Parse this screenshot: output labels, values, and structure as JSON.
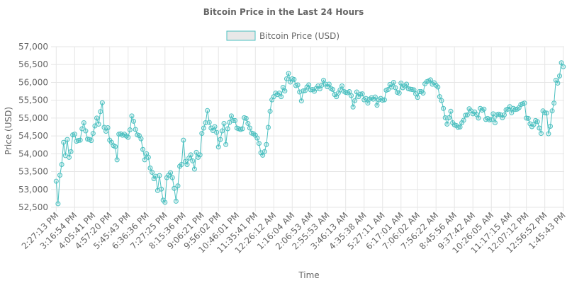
{
  "chart_data": {
    "type": "line",
    "title": "Bitcoin Price in the Last 24 Hours",
    "xlabel": "Time",
    "ylabel": "Price (USD)",
    "ylim": [
      52500,
      57000
    ],
    "yticks": [
      52500,
      53000,
      53500,
      54000,
      54500,
      55000,
      55500,
      56000,
      56500,
      57000
    ],
    "ytick_labels": [
      "52,500",
      "53,000",
      "53,500",
      "54,000",
      "54,500",
      "55,000",
      "55,500",
      "56,000",
      "56,500",
      "57,000"
    ],
    "xtick_labels": [
      "2:27:13 PM",
      "3:16:54 PM",
      "4:05:41 PM",
      "4:57:20 PM",
      "5:45:43 PM",
      "6:36:36 PM",
      "7:27:25 PM",
      "8:15:36 PM",
      "9:06:21 PM",
      "9:56:02 PM",
      "10:46:01 PM",
      "11:35:41 PM",
      "12:26:12 AM",
      "1:16:04 AM",
      "2:06:53 AM",
      "2:55:53 AM",
      "3:46:13 AM",
      "4:35:38 AM",
      "5:27:11 AM",
      "6:17:01 AM",
      "7:06:02 AM",
      "7:56:22 AM",
      "8:45:56 AM",
      "9:37:42 AM",
      "10:26:05 AM",
      "11:17:15 AM",
      "12:07:12 PM",
      "12:56:52 PM",
      "1:45:43 PM"
    ],
    "grid": true,
    "legend_position": "top-center",
    "series": [
      {
        "name": "Bitcoin Price (USD)",
        "color": "#4bc0c0",
        "values": [
          53230,
          52600,
          53400,
          53700,
          54320,
          53950,
          54400,
          53900,
          54060,
          54530,
          54550,
          54350,
          54370,
          54380,
          54700,
          54870,
          54640,
          54410,
          54400,
          54370,
          54570,
          54780,
          55000,
          54830,
          55180,
          55430,
          54740,
          54630,
          54730,
          54380,
          54320,
          54230,
          54200,
          53830,
          54550,
          54560,
          54520,
          54550,
          54500,
          54460,
          54670,
          55060,
          54910,
          54680,
          54530,
          54510,
          54420,
          54120,
          53830,
          54000,
          53900,
          53600,
          53480,
          53300,
          53370,
          52970,
          53390,
          53010,
          52700,
          52640,
          53330,
          53400,
          53470,
          53330,
          53030,
          52670,
          53100,
          53650,
          53700,
          54380,
          53780,
          53700,
          53880,
          53970,
          53800,
          53570,
          54040,
          53900,
          53970,
          54570,
          54720,
          54870,
          55210,
          54880,
          54720,
          54650,
          54760,
          54600,
          54190,
          54400,
          54640,
          54850,
          54260,
          54700,
          54880,
          55060,
          54930,
          54930,
          54720,
          54700,
          54680,
          54700,
          55010,
          54990,
          54850,
          54720,
          54580,
          54560,
          54520,
          54440,
          54290,
          54030,
          53960,
          54060,
          54260,
          54740,
          55190,
          55510,
          55600,
          55700,
          55660,
          55700,
          55600,
          55860,
          55760,
          56100,
          56250,
          56010,
          56100,
          56080,
          55910,
          55930,
          55730,
          55480,
          55760,
          55770,
          55870,
          55930,
          55790,
          55800,
          55750,
          55830,
          55900,
          55820,
          55920,
          56060,
          55950,
          55880,
          55950,
          55830,
          55800,
          55660,
          55600,
          55700,
          55790,
          55900,
          55750,
          55720,
          55710,
          55740,
          55630,
          55310,
          55490,
          55730,
          55600,
          55670,
          55680,
          55510,
          55550,
          55420,
          55530,
          55570,
          55530,
          55590,
          55360,
          55510,
          55550,
          55500,
          55510,
          55780,
          55800,
          55940,
          55870,
          56000,
          55850,
          55720,
          55700,
          55980,
          55850,
          55900,
          55950,
          55820,
          55810,
          55800,
          55790,
          55680,
          55580,
          55740,
          55740,
          55700,
          55960,
          56020,
          56040,
          56070,
          55950,
          55990,
          55920,
          55870,
          55600,
          55490,
          55270,
          55010,
          54830,
          55010,
          55190,
          54870,
          54810,
          54790,
          54740,
          54750,
          54870,
          54940,
          55080,
          55090,
          55260,
          55200,
          55120,
          55170,
          55100,
          55000,
          55270,
          55220,
          55250,
          54960,
          54990,
          54950,
          54960,
          55120,
          54870,
          55090,
          55110,
          55090,
          55010,
          55090,
          55230,
          55250,
          55320,
          55150,
          55270,
          55240,
          55250,
          55290,
          55380,
          55400,
          55420,
          55000,
          54990,
          54840,
          54760,
          54820,
          54930,
          54900,
          54720,
          54570,
          55200,
          55150,
          55140,
          54560,
          54770,
          55200,
          55420,
          56060,
          55980,
          56180,
          56550,
          56440
        ]
      }
    ]
  }
}
